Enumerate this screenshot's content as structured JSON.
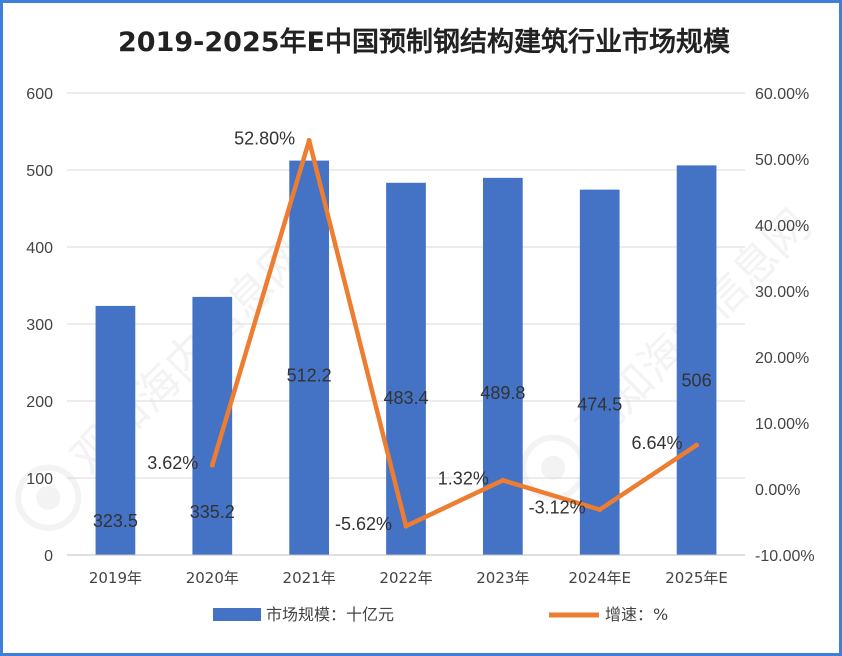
{
  "chart_data": {
    "type": "bar",
    "title": "2019-2025年E中国预制钢结构建筑行业市场规模",
    "categories": [
      "2019年",
      "2020年",
      "2021年",
      "2022年",
      "2023年",
      "2024年E",
      "2025年E"
    ],
    "series": [
      {
        "name": "市场规模：十亿元",
        "type": "bar",
        "axis": "left",
        "color": "#4472c4",
        "values": [
          323.5,
          335.2,
          512.2,
          483.4,
          489.8,
          474.5,
          506
        ],
        "labels": [
          "323.5",
          "335.2",
          "512.2",
          "483.4",
          "489.8",
          "474.5",
          "506"
        ]
      },
      {
        "name": "增速：%",
        "type": "line",
        "axis": "right",
        "color": "#ed7d31",
        "values": [
          null,
          3.62,
          52.8,
          -5.62,
          1.32,
          -3.12,
          6.64
        ],
        "labels": [
          "",
          "3.62%",
          "52.80%",
          "-5.62%",
          "1.32%",
          "-3.12%",
          "6.64%"
        ]
      }
    ],
    "y_left": {
      "min": 0,
      "max": 600,
      "ticks": [
        "0",
        "100",
        "200",
        "300",
        "400",
        "500",
        "600"
      ]
    },
    "y_right": {
      "min": -10,
      "max": 60,
      "ticks": [
        "-10.00%",
        "0.00%",
        "10.00%",
        "20.00%",
        "30.00%",
        "40.00%",
        "50.00%",
        "60.00%"
      ]
    },
    "grid": true,
    "legend_position": "bottom",
    "watermark": "观知海内信息网 WWW.DONGFANGQB.COM"
  }
}
